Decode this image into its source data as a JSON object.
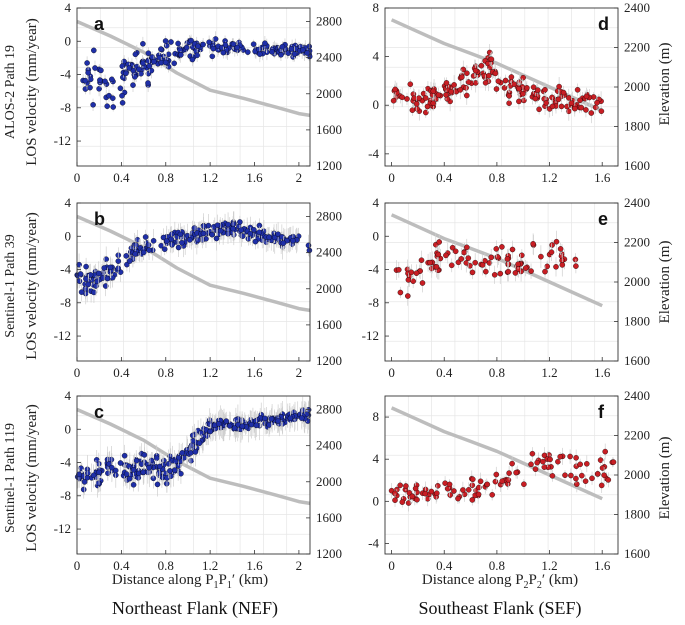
{
  "figure": {
    "row_labels": [
      "ALOS-2 Path 19",
      "Sentinel-1 Path 39",
      "Sentinel-1 Path 119"
    ],
    "ylabel_left": "LOS velocity (mm/year)",
    "ylabel_right": "Elevation (m)",
    "xlabel_left_main": "Distance along P",
    "xlabel_left_sub1": "1",
    "xlabel_left_mid": "P",
    "xlabel_left_sub2": "1",
    "xlabel_left_tail": "′ (km)",
    "xlabel_right_main": "Distance along P",
    "xlabel_right_sub1": "2",
    "xlabel_right_mid": "P",
    "xlabel_right_sub2": "2",
    "xlabel_right_tail": "′ (km)",
    "col_title_left": "Northeast Flank (NEF)",
    "col_title_right": "Southeast Flank (SEF)"
  },
  "colors": {
    "nef_points": "#1f2fa8",
    "sef_points": "#c81e24",
    "elevation_line": "#bdbdbd",
    "grid": "#e6e6e6"
  },
  "chart_data": [
    {
      "type": "scatter",
      "panel": "a",
      "title": "a",
      "xlim": [
        0,
        2.1
      ],
      "xticks": [
        0.0,
        0.4,
        0.8,
        1.2,
        1.6,
        2.0
      ],
      "ylim": [
        -15,
        4
      ],
      "yticks": [
        4,
        0,
        -4,
        -8,
        -12
      ],
      "y2lim": [
        1200,
        2950
      ],
      "y2ticks": [
        2800,
        2400,
        2000,
        1600,
        1200
      ],
      "elevation": {
        "x": [
          0,
          0.3,
          0.6,
          0.9,
          1.2,
          1.5,
          1.8,
          2.0,
          2.1
        ],
        "y": [
          2800,
          2640,
          2460,
          2230,
          2040,
          1950,
          1850,
          1780,
          1760
        ]
      },
      "points": {
        "color": "nef",
        "seed": 11,
        "n": 230,
        "sigma": 0.7,
        "base": [
          [
            0,
            -3.5
          ],
          [
            0.3,
            -5.5
          ],
          [
            0.5,
            -3.2
          ],
          [
            0.7,
            -2.5
          ],
          [
            0.9,
            -1.2
          ],
          [
            1.2,
            -0.8
          ],
          [
            2.1,
            -1.2
          ]
        ],
        "spread": [
          [
            0,
            1.2
          ],
          [
            0.3,
            2.2
          ],
          [
            0.8,
            1.4
          ],
          [
            1.1,
            0.6
          ],
          [
            2.1,
            0.5
          ]
        ]
      }
    },
    {
      "type": "scatter",
      "panel": "b",
      "title": "b",
      "xlim": [
        0,
        2.1
      ],
      "xticks": [
        0.0,
        0.4,
        0.8,
        1.2,
        1.6,
        2.0
      ],
      "ylim": [
        -15,
        4
      ],
      "yticks": [
        4,
        0,
        -4,
        -8,
        -12
      ],
      "y2lim": [
        1200,
        2950
      ],
      "y2ticks": [
        2800,
        2400,
        2000,
        1600,
        1200
      ],
      "elevation": {
        "x": [
          0,
          0.3,
          0.6,
          0.9,
          1.2,
          1.5,
          1.8,
          2.0,
          2.1
        ],
        "y": [
          2800,
          2640,
          2460,
          2230,
          2040,
          1950,
          1850,
          1780,
          1760
        ]
      },
      "points": {
        "color": "nef",
        "seed": 23,
        "n": 250,
        "sigma": 1.1,
        "base": [
          [
            0,
            -5.5
          ],
          [
            0.2,
            -5.2
          ],
          [
            0.4,
            -3.0
          ],
          [
            0.6,
            -1.2
          ],
          [
            0.8,
            -0.5
          ],
          [
            1.2,
            0.5
          ],
          [
            1.4,
            1.0
          ],
          [
            1.7,
            0.0
          ],
          [
            2.1,
            -1.0
          ]
        ],
        "spread": [
          [
            0,
            1.3
          ],
          [
            0.4,
            1.0
          ],
          [
            1.0,
            0.7
          ],
          [
            2.1,
            0.6
          ]
        ]
      }
    },
    {
      "type": "scatter",
      "panel": "c",
      "title": "c",
      "xlim": [
        0,
        2.1
      ],
      "xticks": [
        0.0,
        0.4,
        0.8,
        1.2,
        1.6,
        2.0
      ],
      "ylim": [
        -15,
        4
      ],
      "yticks": [
        4,
        0,
        -4,
        -8,
        -12
      ],
      "y2lim": [
        1200,
        2950
      ],
      "y2ticks": [
        2800,
        2400,
        2000,
        1600,
        1200
      ],
      "elevation": {
        "x": [
          0,
          0.3,
          0.6,
          0.9,
          1.2,
          1.5,
          1.8,
          2.0,
          2.1
        ],
        "y": [
          2800,
          2640,
          2460,
          2230,
          2040,
          1950,
          1850,
          1780,
          1760
        ]
      },
      "points": {
        "color": "nef",
        "seed": 37,
        "n": 300,
        "sigma": 1.3,
        "base": [
          [
            0,
            -5.5
          ],
          [
            0.3,
            -5.0
          ],
          [
            0.6,
            -4.5
          ],
          [
            0.8,
            -5.0
          ],
          [
            1.0,
            -3.0
          ],
          [
            1.1,
            -1.2
          ],
          [
            1.2,
            0.5
          ],
          [
            1.5,
            0.5
          ],
          [
            2.1,
            1.8
          ]
        ],
        "spread": [
          [
            0,
            1.2
          ],
          [
            0.5,
            1.1
          ],
          [
            1.0,
            1.0
          ],
          [
            1.3,
            0.5
          ],
          [
            2.1,
            0.5
          ]
        ]
      }
    },
    {
      "type": "scatter",
      "panel": "d",
      "title": "d",
      "xlim": [
        -0.05,
        1.72
      ],
      "xticks": [
        0.0,
        0.4,
        0.8,
        1.2,
        1.6
      ],
      "ylim": [
        -5,
        8
      ],
      "yticks": [
        8,
        4,
        0,
        -4
      ],
      "y2lim": [
        1600,
        2400
      ],
      "y2ticks": [
        2400,
        2200,
        2000,
        1800,
        1600
      ],
      "elevation": {
        "x": [
          0,
          0.2,
          0.4,
          0.6,
          0.8,
          1.0,
          1.2,
          1.4,
          1.6
        ],
        "y": [
          2340,
          2280,
          2220,
          2170,
          2120,
          2060,
          2000,
          1940,
          1880
        ]
      },
      "points": {
        "color": "sef",
        "seed": 41,
        "n": 190,
        "sigma": 0.6,
        "base": [
          [
            0,
            1.0
          ],
          [
            0.2,
            0.3
          ],
          [
            0.4,
            1.0
          ],
          [
            0.6,
            2.0
          ],
          [
            0.75,
            3.0
          ],
          [
            0.9,
            1.5
          ],
          [
            1.2,
            0.5
          ],
          [
            1.6,
            -0.2
          ]
        ],
        "spread": [
          [
            0,
            0.6
          ],
          [
            0.8,
            0.8
          ],
          [
            1.6,
            0.6
          ]
        ]
      }
    },
    {
      "type": "scatter",
      "panel": "e",
      "title": "e",
      "xlim": [
        -0.05,
        1.72
      ],
      "xticks": [
        0.0,
        0.4,
        0.8,
        1.2,
        1.6
      ],
      "ylim": [
        -15,
        4
      ],
      "yticks": [
        4,
        0,
        -4,
        -8,
        -12
      ],
      "y2lim": [
        1600,
        2400
      ],
      "y2ticks": [
        2400,
        2200,
        2000,
        1800,
        1600
      ],
      "elevation": {
        "x": [
          0,
          0.2,
          0.4,
          0.6,
          0.8,
          1.0,
          1.2,
          1.4,
          1.6
        ],
        "y": [
          2340,
          2280,
          2220,
          2170,
          2120,
          2060,
          2000,
          1940,
          1880
        ]
      },
      "points": {
        "color": "sef",
        "seed": 53,
        "n": 95,
        "sigma": 1.0,
        "base": [
          [
            0,
            -6.0
          ],
          [
            0.2,
            -4.0
          ],
          [
            0.4,
            -2.5
          ],
          [
            0.8,
            -3.0
          ],
          [
            1.0,
            -3.5
          ],
          [
            1.2,
            -2.0
          ],
          [
            1.4,
            -2.5
          ]
        ],
        "spread": [
          [
            0,
            1.5
          ],
          [
            0.6,
            1.2
          ],
          [
            1.4,
            1.5
          ]
        ]
      }
    },
    {
      "type": "scatter",
      "panel": "f",
      "title": "f",
      "xlim": [
        -0.05,
        1.72
      ],
      "xticks": [
        0.0,
        0.4,
        0.8,
        1.2,
        1.6
      ],
      "ylim": [
        -5,
        10
      ],
      "yticks": [
        8,
        4,
        0,
        -4
      ],
      "y2lim": [
        1600,
        2400
      ],
      "y2ticks": [
        2400,
        2200,
        2000,
        1800,
        1600
      ],
      "elevation": {
        "x": [
          0,
          0.2,
          0.4,
          0.6,
          0.8,
          1.0,
          1.2,
          1.4,
          1.6
        ],
        "y": [
          2340,
          2280,
          2220,
          2170,
          2120,
          2060,
          2000,
          1940,
          1880
        ]
      },
      "points": {
        "color": "sef",
        "seed": 67,
        "n": 110,
        "sigma": 0.6,
        "base": [
          [
            0,
            0.8
          ],
          [
            0.4,
            0.8
          ],
          [
            0.7,
            1.5
          ],
          [
            0.9,
            2.5
          ],
          [
            1.1,
            3.8
          ],
          [
            1.7,
            2.5
          ]
        ],
        "spread": [
          [
            0,
            0.6
          ],
          [
            0.8,
            0.8
          ],
          [
            1.1,
            1.2
          ]
        ]
      }
    }
  ]
}
